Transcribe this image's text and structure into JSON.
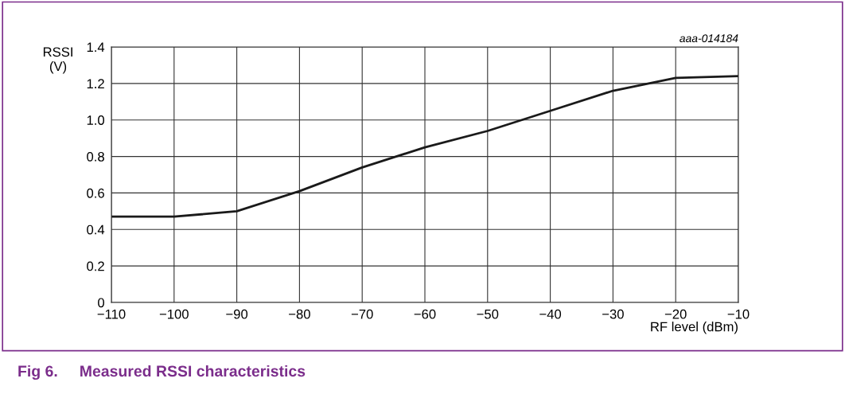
{
  "chart_data": {
    "type": "line",
    "title": "Fig 6.     Measured RSSI characteristics",
    "xlabel": "RF level (dBm)",
    "ylabel": "RSSI\n(V)",
    "annotations": [
      "aaa-014184"
    ],
    "x": [
      -110,
      -100,
      -90,
      -80,
      -70,
      -60,
      -50,
      -40,
      -30,
      -20,
      -10
    ],
    "series": [
      {
        "color": "#1a1a1a",
        "values": [
          0.47,
          0.47,
          0.5,
          0.61,
          0.74,
          0.85,
          0.94,
          1.05,
          1.16,
          1.23,
          1.24
        ]
      }
    ],
    "xlim": [
      -110,
      -10
    ],
    "xticks": [
      -110,
      -100,
      -90,
      -80,
      -70,
      -60,
      -50,
      -40,
      -30,
      -20,
      -10
    ],
    "ylim": [
      0,
      1.4
    ],
    "yticks": [
      0,
      0.2,
      0.4,
      0.6,
      0.8,
      {
        "value": 1,
        "label": "1.0"
      },
      1.2,
      1.4
    ],
    "grid": true,
    "legend": false,
    "marker": "none",
    "line_style": "solid"
  }
}
